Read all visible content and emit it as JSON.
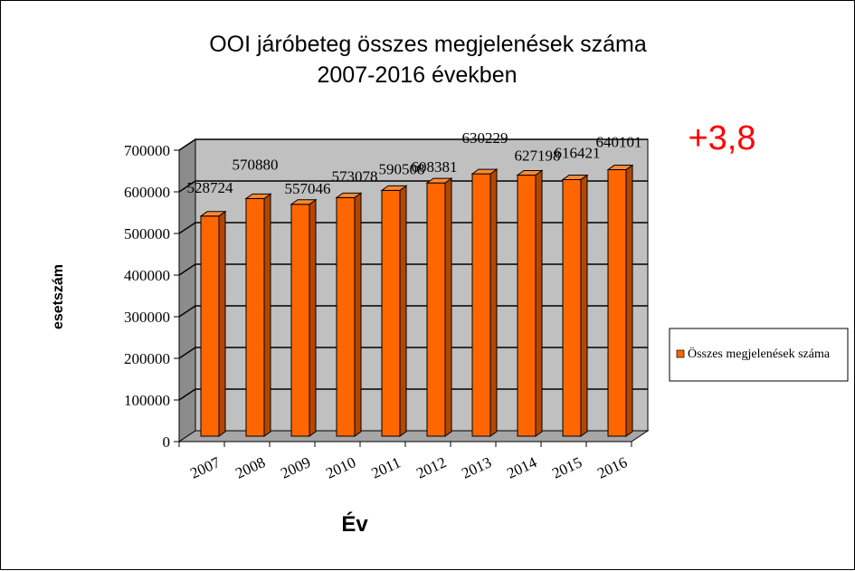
{
  "chart_data": {
    "type": "bar",
    "title_line1": "OOI járóbeteg összes megjelenések száma",
    "title_line2": "2007-2016 években",
    "xlabel": "Év",
    "ylabel": "esetszám",
    "categories": [
      "2007",
      "2008",
      "2009",
      "2010",
      "2011",
      "2012",
      "2013",
      "2014",
      "2015",
      "2016"
    ],
    "series": [
      {
        "name": "Összes megjelenések száma",
        "values": [
          528724,
          570880,
          557046,
          573078,
          590508,
          608381,
          630229,
          627198,
          616421,
          640101
        ],
        "data_labels": [
          "528724",
          "570880",
          "557046",
          "573078",
          "590508",
          "608381",
          "630229",
          "627198",
          "616421",
          "640101"
        ]
      }
    ],
    "yticks": [
      "0",
      "100000",
      "200000",
      "300000",
      "400000",
      "500000",
      "600000",
      "700000"
    ],
    "ylim": [
      0,
      700000
    ],
    "grid": true,
    "legend_position": "right",
    "annotation": "+3,8",
    "colors": {
      "bar_front": "#ff6600",
      "bar_side": "#b34700",
      "bar_top": "#ff8a33",
      "plot_wall": "#c0c0c0",
      "plot_floor": "#a6a6a6",
      "annotation": "#ff0000"
    }
  }
}
